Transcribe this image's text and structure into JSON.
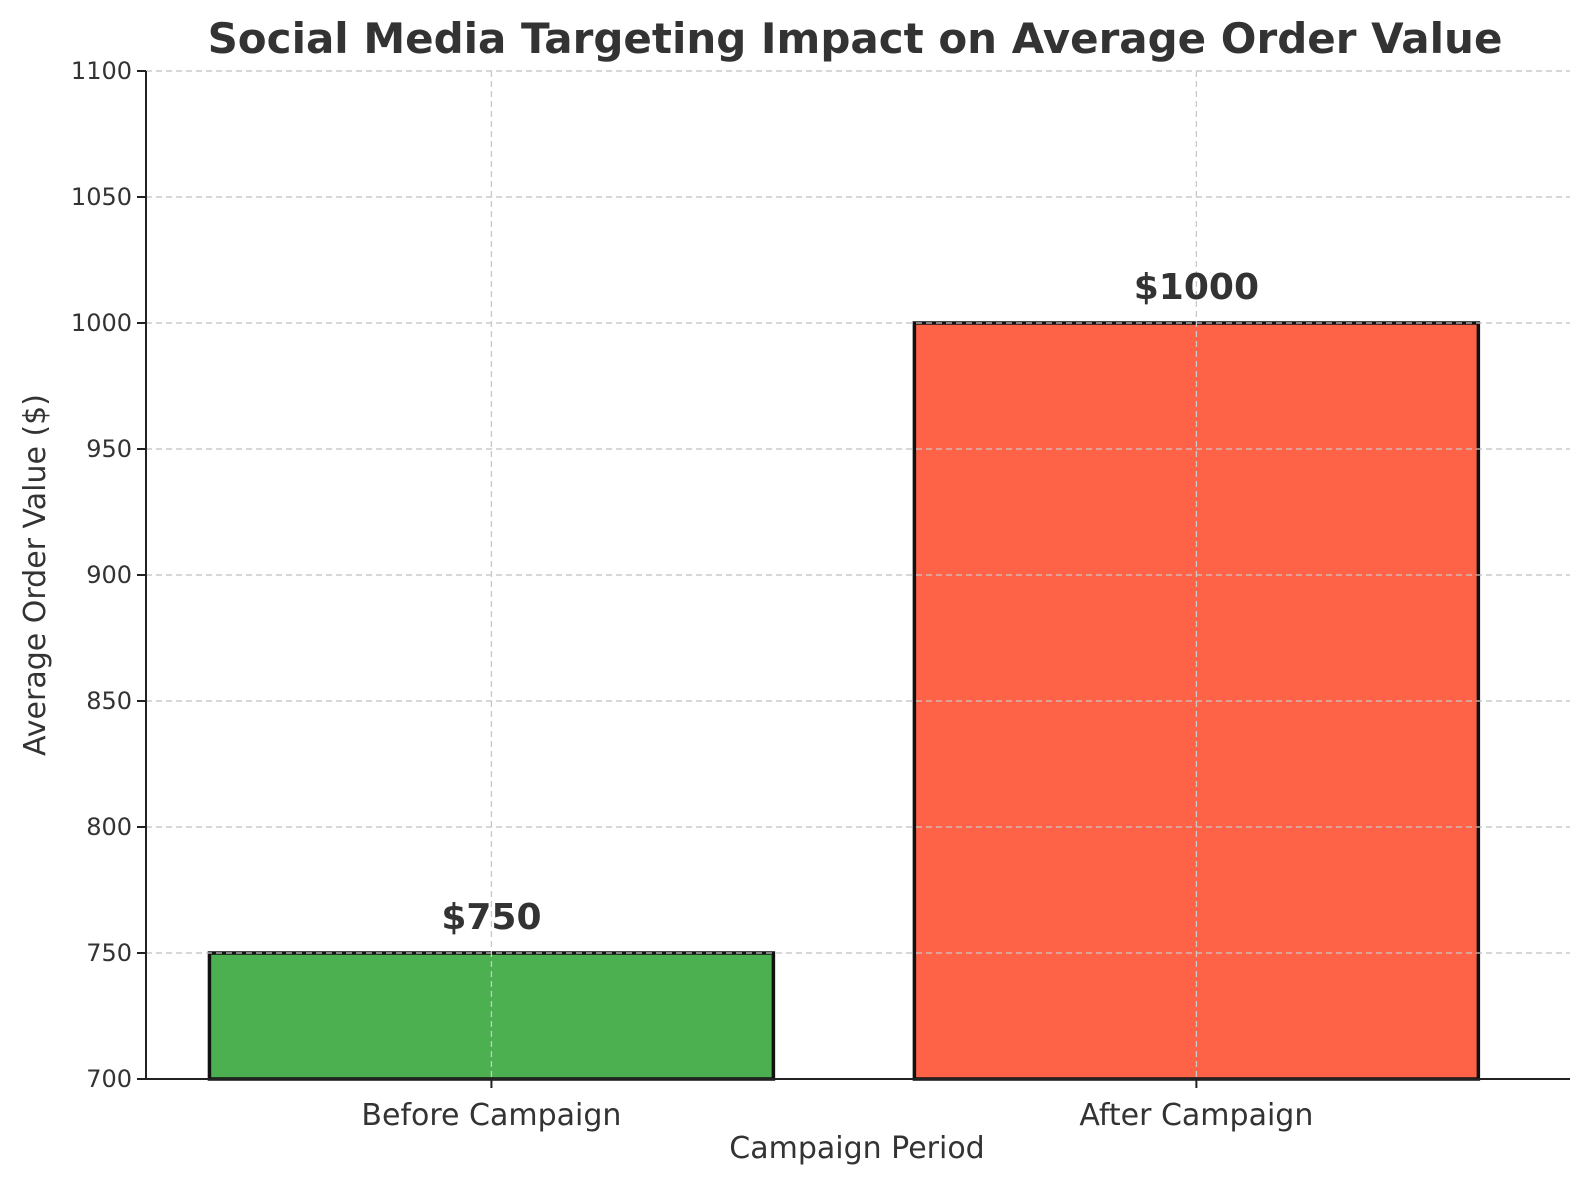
{
  "chart_data": {
    "type": "bar",
    "title": "Social Media Targeting Impact on Average Order Value",
    "xlabel": "Campaign Period",
    "ylabel": "Average Order Value ($)",
    "categories": [
      "Before Campaign",
      "After Campaign"
    ],
    "values": [
      750,
      1000
    ],
    "data_labels": [
      "$750",
      "$1000"
    ],
    "colors": [
      "#4caf50",
      "#ff6347"
    ],
    "edge_color": "#111111",
    "ylim": [
      700,
      1100
    ],
    "yticks": [
      700,
      750,
      800,
      850,
      900,
      950,
      1000,
      1050,
      1100
    ],
    "grid": true
  }
}
